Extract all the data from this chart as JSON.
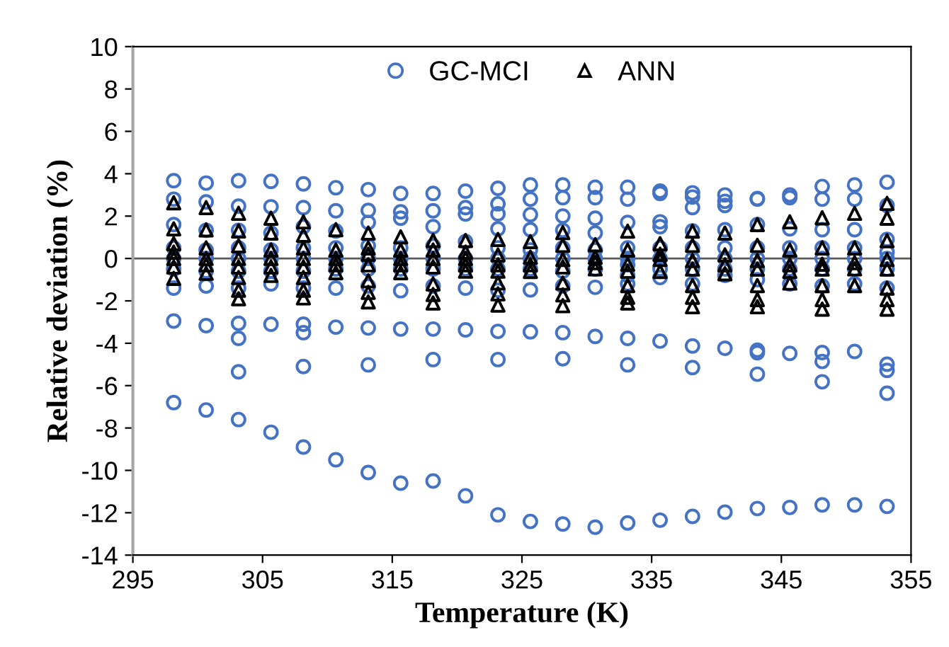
{
  "chart_data": {
    "type": "scatter",
    "xlabel": "Temperature (K)",
    "ylabel": "Relative deviation (%)",
    "xlim": [
      295,
      355
    ],
    "xticks": [
      295,
      305,
      315,
      325,
      335,
      345,
      355
    ],
    "ylim": [
      -14,
      10
    ],
    "yticks": [
      -14,
      -12,
      -10,
      -8,
      -6,
      -4,
      -2,
      0,
      2,
      4,
      6,
      8,
      10
    ],
    "grid": false,
    "legend": "top",
    "ref_lines": [
      {
        "axis": "y",
        "value": 0,
        "color": "#595959"
      }
    ],
    "series": [
      {
        "name": "GC-MCI",
        "color": "#4472c4",
        "marker": "circle",
        "x": [
          298.15,
          298.15,
          298.15,
          298.15,
          298.15,
          298.15,
          298.15,
          298.15,
          298.15,
          300.65,
          300.65,
          300.65,
          300.65,
          300.65,
          300.65,
          300.65,
          300.65,
          300.65,
          303.15,
          303.15,
          303.15,
          303.15,
          303.15,
          303.15,
          303.15,
          303.15,
          303.15,
          303.15,
          303.15,
          305.65,
          305.65,
          305.65,
          305.65,
          305.65,
          305.65,
          305.65,
          305.65,
          305.65,
          308.15,
          308.15,
          308.15,
          308.15,
          308.15,
          308.15,
          308.15,
          308.15,
          308.15,
          308.15,
          308.15,
          310.65,
          310.65,
          310.65,
          310.65,
          310.65,
          310.65,
          310.65,
          310.65,
          310.65,
          313.15,
          313.15,
          313.15,
          313.15,
          313.15,
          313.15,
          313.15,
          313.15,
          313.15,
          313.15,
          315.65,
          315.65,
          315.65,
          315.65,
          315.65,
          315.65,
          315.65,
          315.65,
          315.65,
          318.15,
          318.15,
          318.15,
          318.15,
          318.15,
          318.15,
          318.15,
          318.15,
          318.15,
          318.15,
          320.65,
          320.65,
          320.65,
          320.65,
          320.65,
          320.65,
          320.65,
          320.65,
          320.65,
          323.15,
          323.15,
          323.15,
          323.15,
          323.15,
          323.15,
          323.15,
          323.15,
          323.15,
          323.15,
          323.15,
          325.65,
          325.65,
          325.65,
          325.65,
          325.65,
          325.65,
          325.65,
          325.65,
          325.65,
          325.65,
          328.15,
          328.15,
          328.15,
          328.15,
          328.15,
          328.15,
          328.15,
          328.15,
          328.15,
          328.15,
          328.15,
          330.65,
          330.65,
          330.65,
          330.65,
          330.65,
          330.65,
          330.65,
          330.65,
          330.65,
          330.65,
          333.15,
          333.15,
          333.15,
          333.15,
          333.15,
          333.15,
          333.15,
          333.15,
          333.15,
          333.15,
          333.15,
          335.65,
          335.65,
          335.65,
          335.65,
          335.65,
          335.65,
          335.65,
          335.65,
          335.65,
          335.65,
          338.15,
          338.15,
          338.15,
          338.15,
          338.15,
          338.15,
          338.15,
          338.15,
          338.15,
          338.15,
          338.15,
          340.65,
          340.65,
          340.65,
          340.65,
          340.65,
          340.65,
          340.65,
          340.65,
          340.65,
          340.65,
          343.15,
          343.15,
          343.15,
          343.15,
          343.15,
          343.15,
          343.15,
          343.15,
          343.15,
          343.15,
          343.15,
          345.65,
          345.65,
          345.65,
          345.65,
          345.65,
          345.65,
          345.65,
          345.65,
          345.65,
          348.15,
          348.15,
          348.15,
          348.15,
          348.15,
          348.15,
          348.15,
          348.15,
          348.15,
          348.15,
          348.15,
          350.65,
          350.65,
          350.65,
          350.65,
          350.65,
          350.65,
          350.65,
          350.65,
          350.65,
          353.15,
          353.15,
          353.15,
          353.15,
          353.15,
          353.15,
          353.15,
          353.15,
          353.15,
          353.15,
          353.15
        ],
        "values": [
          3.67,
          2.8,
          1.6,
          0.5,
          0,
          -0.5,
          -1.4,
          -2.95,
          -6.8,
          3.56,
          2.67,
          1.33,
          0.4,
          0,
          -0.6,
          -1.3,
          -3.17,
          -7.15,
          3.67,
          2.47,
          1.33,
          0.5,
          0,
          -0.6,
          -1.4,
          -3.06,
          -3.77,
          -5.35,
          -7.6,
          3.64,
          2.44,
          1.2,
          0.4,
          0,
          -0.6,
          -1.2,
          -3.1,
          -8.2,
          3.52,
          2.4,
          1.5,
          0.5,
          0,
          -0.6,
          -1.4,
          -3.1,
          -3.5,
          -5.1,
          -8.9,
          3.34,
          2.25,
          1.3,
          0.5,
          0,
          -0.5,
          -1.4,
          -3.24,
          -9.5,
          3.25,
          2.27,
          1.7,
          0.6,
          0,
          -0.5,
          -1.3,
          -3.28,
          -5.02,
          -10.1,
          3.07,
          2.2,
          1.9,
          0.5,
          0,
          -0.5,
          -1.52,
          -3.33,
          -10.6,
          3.07,
          2.25,
          1.5,
          0.6,
          0,
          -0.5,
          -1.3,
          -3.33,
          -4.77,
          -10.5,
          3.18,
          2.4,
          2.1,
          0.8,
          0,
          -0.5,
          -1.4,
          -3.37,
          -11.2,
          3.31,
          2.58,
          2.11,
          1.4,
          0.5,
          0,
          -0.5,
          -1.5,
          -3.44,
          -4.77,
          -12.1,
          3.47,
          2.8,
          2.07,
          1.36,
          0.4,
          0,
          -0.5,
          -1.48,
          -3.46,
          -12.41,
          3.47,
          2.87,
          2.0,
          1.33,
          0.5,
          0,
          -0.6,
          -1.3,
          -3.5,
          -4.73,
          -12.53,
          3.36,
          2.87,
          1.9,
          1.2,
          0.4,
          0,
          -0.5,
          -1.36,
          -3.68,
          -12.68,
          3.36,
          2.8,
          1.7,
          0.5,
          0,
          -0.3,
          -0.8,
          -1.2,
          -3.77,
          -5.02,
          -12.48,
          3.18,
          3.07,
          1.73,
          1.5,
          0.5,
          0,
          -0.5,
          -0.9,
          -3.9,
          -12.35,
          3.1,
          2.9,
          2.4,
          1.3,
          0.5,
          0,
          -0.5,
          -1.2,
          -4.13,
          -5.15,
          -12.17,
          3.0,
          2.7,
          2.5,
          1.36,
          0.5,
          0,
          -0.5,
          -0.8,
          -4.24,
          -11.97,
          2.83,
          2.8,
          1.6,
          0.5,
          0,
          -0.5,
          -1.0,
          -4.33,
          -4.45,
          -5.46,
          -11.8,
          3.0,
          2.87,
          1.4,
          0.5,
          0,
          -0.5,
          -1.2,
          -4.48,
          -11.75,
          3.4,
          2.8,
          1.36,
          0.5,
          0,
          -0.5,
          -1.3,
          -4.44,
          -4.86,
          -5.82,
          -11.63,
          3.47,
          2.8,
          1.36,
          0.5,
          0,
          -0.5,
          -1.2,
          -4.39,
          -11.63,
          3.6,
          2.5,
          0.9,
          0.3,
          0,
          -0.5,
          -1.4,
          -4.99,
          -5.28,
          -6.36,
          -11.7
        ]
      },
      {
        "name": "ANN",
        "color": "#000000",
        "marker": "triangle",
        "x": [
          298.15,
          298.15,
          298.15,
          298.15,
          298.15,
          298.15,
          298.15,
          300.65,
          300.65,
          300.65,
          300.65,
          300.65,
          300.65,
          303.15,
          303.15,
          303.15,
          303.15,
          303.15,
          303.15,
          303.15,
          303.15,
          305.65,
          305.65,
          305.65,
          305.65,
          305.65,
          305.65,
          308.15,
          308.15,
          308.15,
          308.15,
          308.15,
          308.15,
          308.15,
          308.15,
          310.65,
          310.65,
          310.65,
          310.65,
          310.65,
          313.15,
          313.15,
          313.15,
          313.15,
          313.15,
          313.15,
          313.15,
          315.65,
          315.65,
          315.65,
          315.65,
          315.65,
          318.15,
          318.15,
          318.15,
          318.15,
          318.15,
          318.15,
          318.15,
          320.65,
          320.65,
          320.65,
          320.65,
          320.65,
          323.15,
          323.15,
          323.15,
          323.15,
          323.15,
          323.15,
          323.15,
          325.65,
          325.65,
          325.65,
          325.65,
          328.15,
          328.15,
          328.15,
          328.15,
          328.15,
          328.15,
          328.15,
          330.65,
          330.65,
          330.65,
          330.65,
          333.15,
          333.15,
          333.15,
          333.15,
          333.15,
          333.15,
          333.15,
          335.65,
          335.65,
          335.65,
          335.65,
          338.15,
          338.15,
          338.15,
          338.15,
          338.15,
          338.15,
          338.15,
          340.65,
          340.65,
          340.65,
          340.65,
          343.15,
          343.15,
          343.15,
          343.15,
          343.15,
          343.15,
          343.15,
          345.65,
          345.65,
          345.65,
          345.65,
          345.65,
          348.15,
          348.15,
          348.15,
          348.15,
          348.15,
          348.15,
          348.15,
          350.65,
          350.65,
          350.65,
          350.65,
          350.65,
          353.15,
          353.15,
          353.15,
          353.15,
          353.15,
          353.15,
          353.15,
          353.15
        ],
        "values": [
          2.63,
          1.4,
          0.7,
          0.3,
          0,
          -0.4,
          -0.94,
          2.4,
          1.35,
          0.5,
          0,
          -0.3,
          -0.7,
          2.13,
          1.3,
          0.6,
          0,
          -0.4,
          -0.9,
          -1.5,
          -1.9,
          1.9,
          1.2,
          0.4,
          0,
          -0.4,
          -0.8,
          1.73,
          1.1,
          0.5,
          0,
          -0.4,
          -0.9,
          -1.5,
          -1.86,
          1.36,
          0.4,
          0,
          -0.3,
          -0.67,
          1.2,
          0.5,
          0.2,
          -0.3,
          -1.05,
          -1.6,
          -2.05,
          1.02,
          0.4,
          0,
          -0.3,
          -0.67,
          0.85,
          0.4,
          0,
          -0.4,
          -1.2,
          -1.7,
          -2.1,
          0.85,
          0.3,
          0,
          -0.3,
          -0.6,
          0.9,
          0.17,
          -0.3,
          -0.6,
          -1.15,
          -1.67,
          -2.2,
          0.8,
          0.06,
          -0.3,
          -0.61,
          1.22,
          0.62,
          -0.05,
          -0.4,
          -1.16,
          -1.72,
          -2.23,
          0.65,
          0.06,
          -0.2,
          -0.49,
          1.29,
          0.4,
          -0.27,
          -0.6,
          -1.28,
          -1.83,
          -2.1,
          0.7,
          0.2,
          -0.05,
          -0.61,
          1.29,
          0.62,
          -0.1,
          -0.5,
          -1.28,
          -1.83,
          -2.28,
          1.2,
          0.17,
          -0.3,
          -0.72,
          1.6,
          0.62,
          -0.1,
          -0.5,
          -1.28,
          -1.94,
          -2.28,
          1.73,
          0.4,
          -0.3,
          -0.61,
          -1.16,
          1.92,
          0.5,
          -0.27,
          -0.5,
          -1.28,
          -1.94,
          -2.39,
          2.13,
          0.5,
          -0.2,
          -0.49,
          -1.28,
          2.6,
          1.9,
          0.84,
          -0.05,
          -0.5,
          -1.4,
          -1.94,
          -2.39
        ]
      }
    ]
  }
}
